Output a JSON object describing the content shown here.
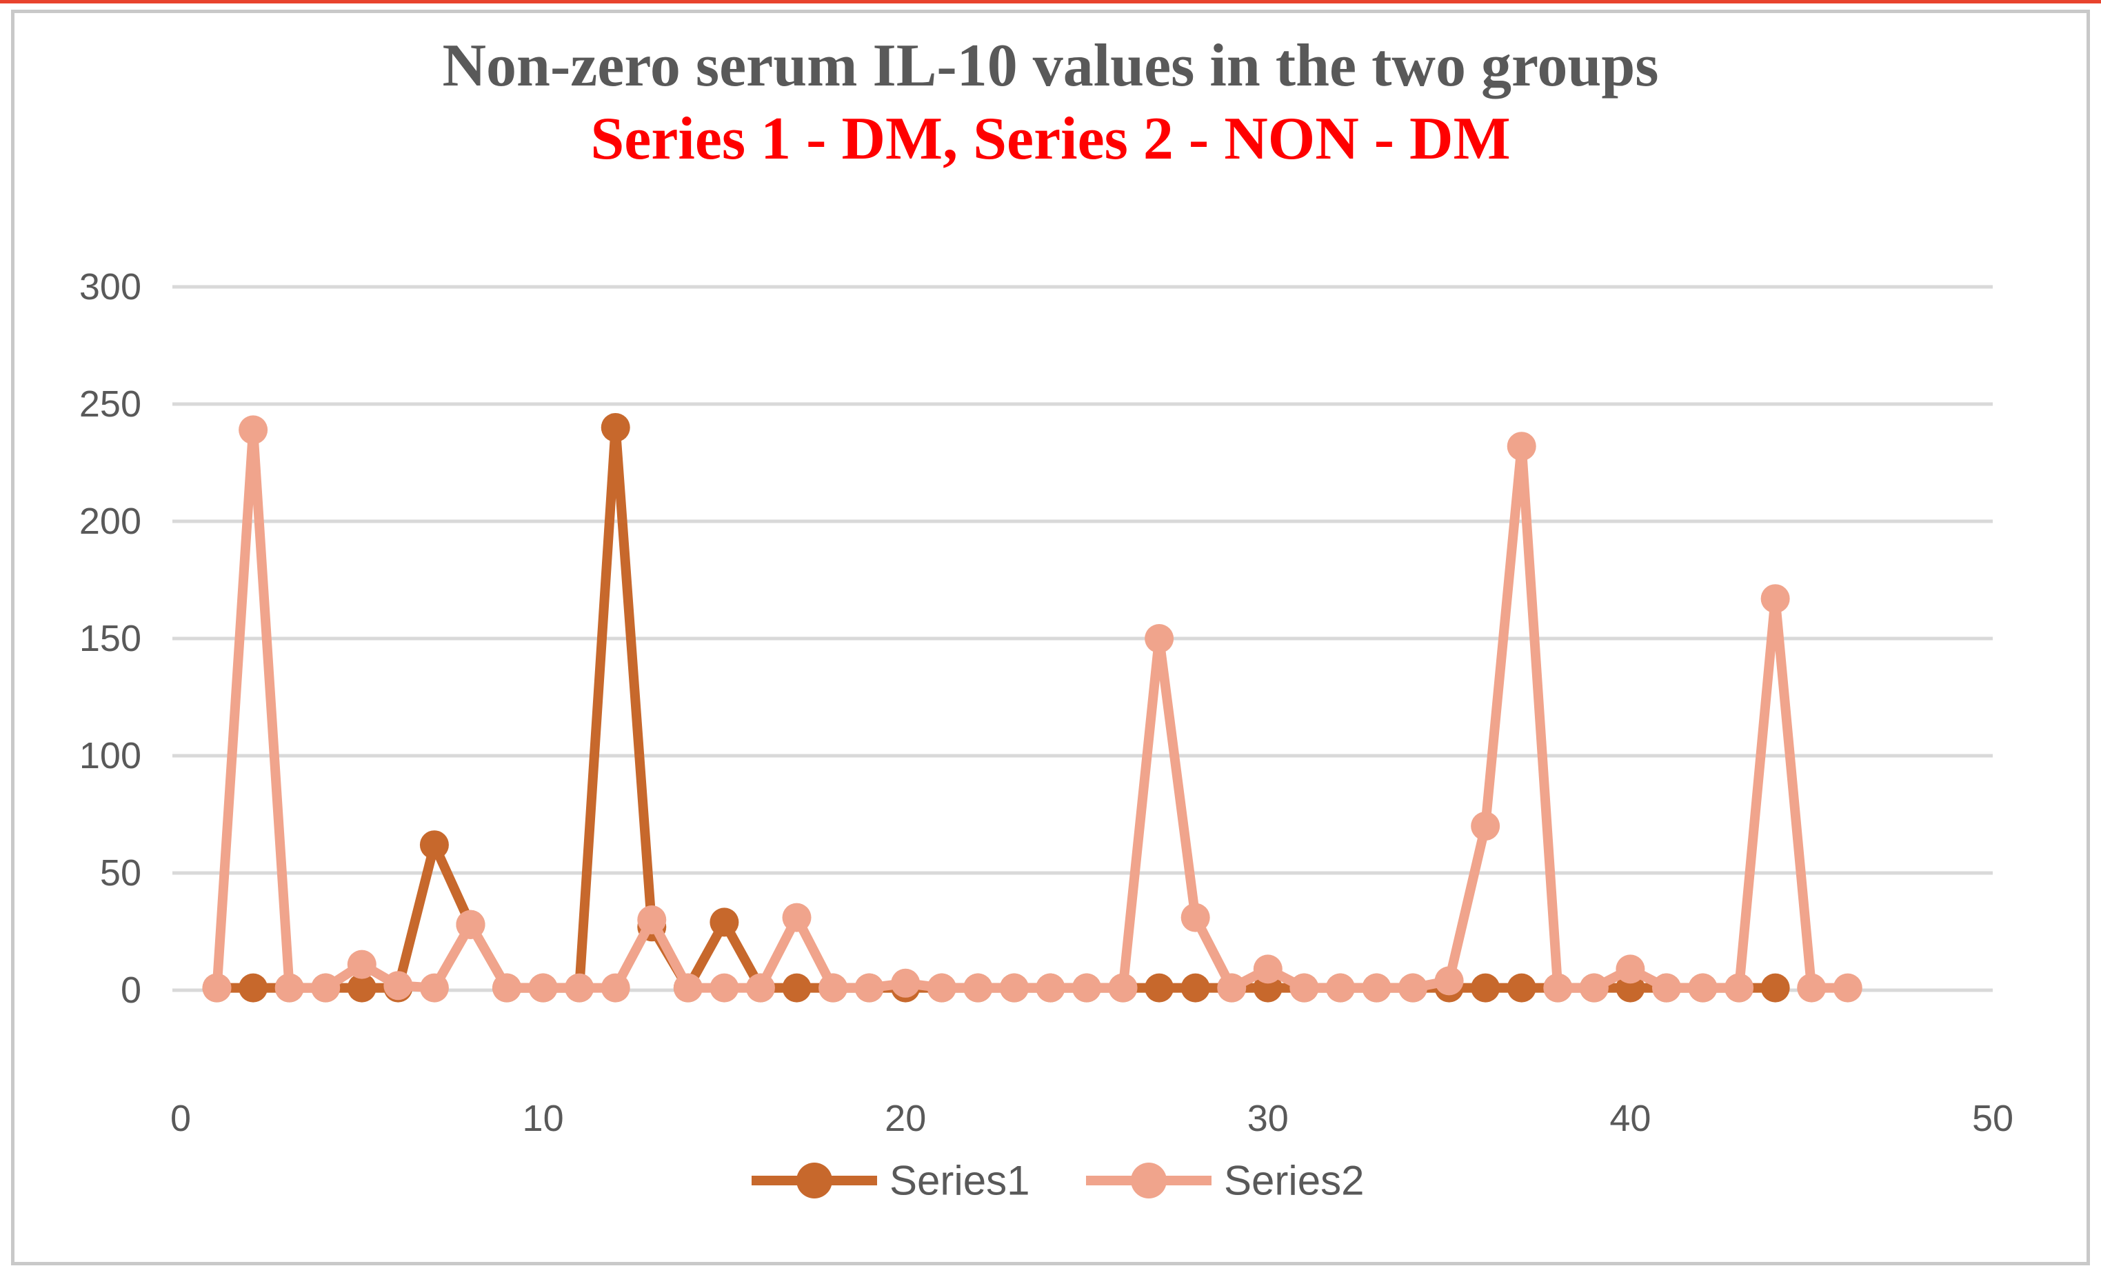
{
  "page": {
    "top_edge_color": "#e8432e",
    "frame_border_color": "#c9c9c9",
    "background": "#ffffff"
  },
  "chart_data": {
    "type": "line",
    "title": "Non-zero serum IL-10 values in the two groups",
    "subtitle": "Series 1 - DM, Series 2 - NON - DM",
    "title_color": "#595959",
    "subtitle_color": "#ff0000",
    "xlabel": "",
    "ylabel": "",
    "xlim": [
      0,
      50
    ],
    "ylim": [
      0,
      300
    ],
    "x_ticks": [
      0,
      10,
      20,
      30,
      40,
      50
    ],
    "y_ticks": [
      0,
      50,
      100,
      150,
      200,
      250,
      300
    ],
    "grid": "horizontal",
    "gridline_color": "#d9d9d9",
    "tick_label_color": "#595959",
    "legend_position": "bottom",
    "series": [
      {
        "name": "Series1",
        "color": "#c7682c",
        "x_start": 1,
        "values": [
          1,
          1,
          1,
          1,
          1,
          1,
          62,
          28,
          1,
          1,
          1,
          240,
          27,
          1,
          29,
          1,
          1,
          1,
          1,
          1,
          1,
          1,
          1,
          1,
          1,
          1,
          1,
          1,
          1,
          1,
          1,
          1,
          1,
          1,
          1,
          1,
          1,
          1,
          1,
          1,
          1,
          1,
          1,
          1
        ]
      },
      {
        "name": "Series2",
        "color": "#f0a48c",
        "x_start": 1,
        "values": [
          1,
          239,
          1,
          1,
          11,
          2,
          1,
          28,
          1,
          1,
          1,
          1,
          30,
          1,
          1,
          1,
          31,
          1,
          1,
          3,
          1,
          1,
          1,
          1,
          1,
          1,
          150,
          31,
          1,
          9,
          1,
          1,
          1,
          1,
          4,
          70,
          232,
          1,
          1,
          9,
          1,
          1,
          1,
          167,
          1,
          1
        ]
      }
    ]
  }
}
